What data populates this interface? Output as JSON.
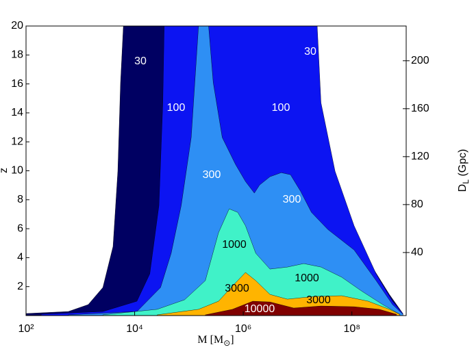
{
  "chart_data": {
    "type": "contour",
    "xlabel": {
      "main": "M [M",
      "sub": "⊙",
      "rest": "]"
    },
    "ylabel": "z",
    "y2label": {
      "main": "D",
      "sub": "L",
      "rest": " (Gpc)"
    },
    "xscale": "log",
    "xlim": [
      100,
      1000000000.0
    ],
    "xticks": [
      {
        "value": 100,
        "label": "10²"
      },
      {
        "value": 10000,
        "label": "10⁴"
      },
      {
        "value": 1000000,
        "label": "10⁶"
      },
      {
        "value": 100000000,
        "label": "10⁸"
      }
    ],
    "ylim": [
      0,
      20
    ],
    "yticks": [
      2,
      4,
      6,
      8,
      10,
      12,
      14,
      16,
      18,
      20
    ],
    "y2lim": [
      -12.6,
      229
    ],
    "y2ticks": [
      40,
      80,
      120,
      160,
      200
    ],
    "series": [
      {
        "name": "30",
        "color": "#000062",
        "x": [
          100,
          600,
          1400,
          2600,
          4000,
          4900,
          5500,
          6200,
          8500000,
          11000000.0,
          20000000.0,
          65000000.0,
          200000000.0,
          490000000.0,
          870000000.0
        ],
        "values": [
          0.14,
          0.28,
          0.76,
          1.94,
          4.77,
          9.97,
          16.1,
          20,
          20,
          17.05,
          12.3,
          7.6,
          3.8,
          1.46,
          0.14
        ]
      },
      {
        "name": "100",
        "color": "#0c14f2",
        "x": [
          190,
          2600,
          11000,
          19000,
          28000,
          33000,
          35000,
          23000000.0,
          27000000.0,
          49000000.0,
          110000000.0,
          280000000.0,
          560000000.0,
          870000000.0
        ],
        "values": [
          0.09,
          0.28,
          0.99,
          2.88,
          7.6,
          14.7,
          20,
          20,
          14.7,
          9.97,
          6.2,
          2.88,
          0.99,
          0.14
        ]
      },
      {
        "name": "300",
        "color": "#2e8ff4",
        "x": [
          600,
          11000,
          30000,
          47000,
          72000,
          110000,
          150000,
          230000,
          280000,
          410000,
          720000,
          1100000,
          1600000,
          2000000,
          3100000,
          5000000,
          7400000,
          11500000.0,
          18000000.0,
          36000000.0,
          110000000.0,
          280000000.0,
          560000000.0,
          870000000.0
        ],
        "values": [
          0.05,
          0.28,
          1.94,
          4.3,
          7.6,
          12.3,
          20,
          20,
          16.1,
          12.3,
          10.44,
          9.26,
          8.46,
          9.02,
          9.59,
          9.87,
          9.73,
          8.55,
          7.13,
          5.95,
          4.53,
          2.41,
          0.76,
          0.09
        ]
      },
      {
        "name": "1000",
        "color": "#40f2c8",
        "x": [
          2600,
          26000,
          83000,
          200000,
          350000,
          550000,
          790000,
          1100000,
          1700000,
          3100000,
          6500000,
          13000000.0,
          27000000.0,
          65000000.0,
          150000000.0,
          370000000.0,
          760000000.0
        ],
        "values": [
          0.05,
          0.43,
          1.09,
          2.41,
          5.72,
          7.37,
          7.13,
          6.2,
          4.3,
          3.21,
          3.35,
          3.59,
          3.35,
          2.65,
          1.7,
          0.76,
          0.09
        ]
      },
      {
        "name": "3000",
        "color": "#ffb400",
        "x": [
          26000,
          150000,
          350000,
          630000,
          1100000,
          1700000,
          3100000,
          6500000,
          20000000.0,
          65000000.0,
          200000000.0,
          490000000.0,
          760000000.0
        ],
        "values": [
          0.05,
          0.43,
          0.99,
          2.03,
          2.98,
          2.41,
          1.46,
          1.13,
          1.32,
          1.37,
          0.99,
          0.43,
          0.09
        ]
      },
      {
        "name": "10000",
        "color": "#800000",
        "x": [
          200000,
          630000,
          1500000,
          3100000,
          8500000,
          27000000.0,
          110000000.0,
          320000000.0,
          660000000.0
        ],
        "values": [
          0.05,
          0.43,
          0.99,
          0.94,
          0.52,
          0.66,
          0.61,
          0.43,
          0.09
        ]
      }
    ]
  }
}
